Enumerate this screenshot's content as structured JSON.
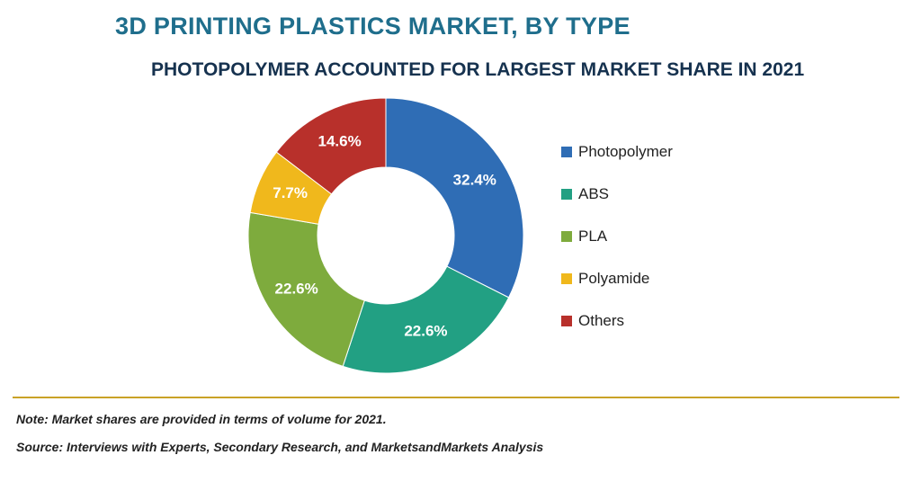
{
  "header": {
    "title": "3D PRINTING PLASTICS MARKET, BY TYPE",
    "subtitle": "PHOTOPOLYMER ACCOUNTED FOR LARGEST MARKET SHARE IN 2021"
  },
  "chart_data": {
    "type": "pie",
    "variant": "donut",
    "title": "3D PRINTING PLASTICS MARKET, BY TYPE",
    "subtitle": "PHOTOPOLYMER ACCOUNTED FOR LARGEST MARKET SHARE IN 2021",
    "categories": [
      "Photopolymer",
      "ABS",
      "PLA",
      "Polyamide",
      "Others"
    ],
    "values": [
      32.4,
      22.6,
      22.6,
      7.7,
      14.6
    ],
    "labels": [
      "32.4%",
      "22.6%",
      "22.6%",
      "7.7%",
      "14.6%"
    ],
    "colors": [
      "#2f6db5",
      "#22a083",
      "#7eab3d",
      "#f0b81c",
      "#b8302b"
    ],
    "legend_position": "right",
    "start_angle_deg": 0,
    "direction": "clockwise"
  },
  "legend": {
    "items": [
      {
        "label": "Photopolymer",
        "color": "#2f6db5"
      },
      {
        "label": "ABS",
        "color": "#22a083"
      },
      {
        "label": "PLA",
        "color": "#7eab3d"
      },
      {
        "label": "Polyamide",
        "color": "#f0b81c"
      },
      {
        "label": "Others",
        "color": "#b8302b"
      }
    ]
  },
  "footer": {
    "note": "Note: Market shares are provided in terms of volume for 2021.",
    "source": "Source: Interviews with Experts, Secondary Research, and MarketsandMarkets Analysis"
  }
}
